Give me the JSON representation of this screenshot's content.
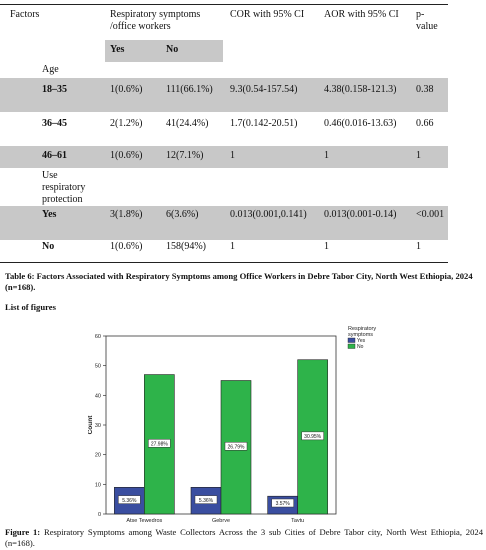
{
  "table": {
    "headers": {
      "factors": "Factors",
      "respiratory_line1": "Respiratory symptoms",
      "respiratory_line2": "/office workers",
      "yes": "Yes",
      "no": "No",
      "cor": "COR with 95% CI",
      "aor": "AOR with 95% CI",
      "p_line1": "p-",
      "p_line2": "value"
    },
    "age_label": "Age",
    "use_protection_lines": [
      "Use",
      "respiratory",
      "protection"
    ],
    "rows": [
      {
        "label": "18–35",
        "yes": "1(0.6%)",
        "no": "111(66.1%)",
        "cor": "9.3(0.54-157.54)",
        "aor": "4.38(0.158-121.3)",
        "p": "0.38"
      },
      {
        "label": "36–45",
        "yes": "2(1.2%)",
        "no": "41(24.4%)",
        "cor": "1.7(0.142-20.51)",
        "aor": "0.46(0.016-13.63)",
        "p": "0.66"
      },
      {
        "label": "46–61",
        "yes": "1(0.6%)",
        "no": "12(7.1%)",
        "cor": "1",
        "aor": "1",
        "p": "1"
      },
      {
        "label": "Yes",
        "yes": "3(1.8%)",
        "no": "6(3.6%)",
        "cor": "0.013(0.001,0.141)",
        "aor": "0.013(0.001-0.14)",
        "p": "<0.001"
      },
      {
        "label": "No",
        "yes": "1(0.6%)",
        "no": "158(94%)",
        "cor": "1",
        "aor": "1",
        "p": "1"
      }
    ]
  },
  "table_caption": "Table 6: Factors Associated with Respiratory Symptoms among Office Workers in Debre Tabor City, North West Ethiopia, 2024 (n=168).",
  "list_of_figures": "List of figures",
  "figure_caption_label": "Figure 1:",
  "figure_caption_text": "Respiratory Symptoms among Waste Collectors Across the 3 sub Cities of Debre Tabor city, North West Ethiopia, 2024 (n=168).",
  "colors": {
    "yes": "#3a4ea0",
    "no": "#2eb34a",
    "band": "#c8c8c8"
  },
  "chart_data": {
    "type": "bar",
    "categories": [
      "Atse Tewedros",
      "Gebrye",
      "Taytu"
    ],
    "series": [
      {
        "name": "Yes",
        "values": [
          9,
          9,
          6
        ],
        "labels": [
          "5.36%",
          "5.36%",
          "3.57%"
        ]
      },
      {
        "name": "No",
        "values": [
          47,
          45,
          52
        ],
        "labels": [
          "27.98%",
          "26.79%",
          "30.95%"
        ]
      }
    ],
    "ylabel": "Count",
    "xlabel": "",
    "ylim": [
      0,
      60
    ],
    "yticks": [
      "0",
      "10",
      "20",
      "30",
      "40",
      "50",
      "60"
    ],
    "legend_title_lines": [
      "Respiratory",
      "symptoms"
    ],
    "legend_position": "top-right",
    "grid": false
  }
}
